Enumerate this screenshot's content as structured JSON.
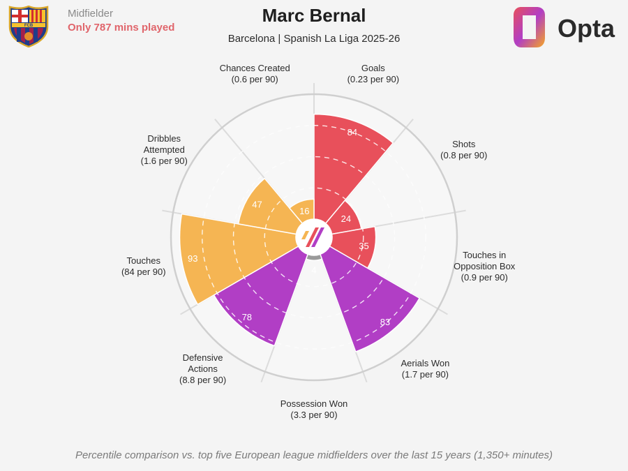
{
  "header": {
    "position": "Midfielder",
    "minutes_note": "Only 787 mins played",
    "player_name": "Marc Bernal",
    "subtitle": "Barcelona | Spanish La Liga 2025-26",
    "brand": "Opta",
    "crest_letters": "FCB"
  },
  "footnote": "Percentile comparison vs. top five European league midfielders over the last 15 years (1,350+ minutes)",
  "colors": {
    "attack": "#e8505b",
    "possession": "#f5b553",
    "defence": "#b13ec5",
    "grid": "#dcdcdc",
    "background": "#f4f4f4",
    "low_value": "#9a9a9a"
  },
  "chart_data": {
    "type": "polar-bar",
    "scale": [
      0,
      100
    ],
    "metrics": [
      {
        "name": "Goals",
        "per90": "(0.23 per 90)",
        "percentile": 84,
        "group": "attack"
      },
      {
        "name": "Shots",
        "per90": "(0.8 per 90)",
        "percentile": 24,
        "group": "attack"
      },
      {
        "name": "Touches in\nOpposition Box",
        "per90": "(0.9 per 90)",
        "percentile": 35,
        "group": "attack"
      },
      {
        "name": "Aerials Won",
        "per90": "(1.7 per 90)",
        "percentile": 83,
        "group": "defence"
      },
      {
        "name": "Possession Won",
        "per90": "(3.3 per 90)",
        "percentile": 4,
        "group": "defence"
      },
      {
        "name": "Defensive\nActions",
        "per90": "(8.8 per 90)",
        "percentile": 78,
        "group": "defence"
      },
      {
        "name": "Touches",
        "per90": "(84 per 90)",
        "percentile": 93,
        "group": "possession"
      },
      {
        "name": "Dribbles\nAttempted",
        "per90": "(1.6 per 90)",
        "percentile": 47,
        "group": "possession"
      },
      {
        "name": "Chances Created",
        "per90": "(0.6 per 90)",
        "percentile": 16,
        "group": "possession"
      }
    ]
  }
}
